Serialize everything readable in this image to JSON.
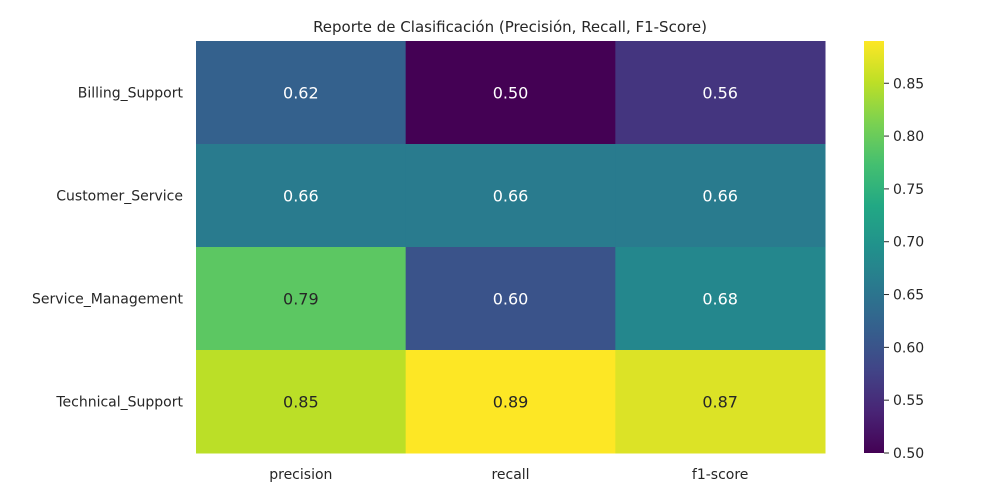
{
  "chart_data": {
    "type": "heatmap",
    "title": "Reporte de Clasificación (Precisión, Recall, F1-Score)",
    "xlabel": "",
    "ylabel": "",
    "columns": [
      "precision",
      "recall",
      "f1-score"
    ],
    "rows": [
      "Billing_Support",
      "Customer_Service",
      "Service_Management",
      "Technical_Support"
    ],
    "values": [
      [
        0.62,
        0.5,
        0.56
      ],
      [
        0.66,
        0.66,
        0.66
      ],
      [
        0.79,
        0.6,
        0.68
      ],
      [
        0.85,
        0.89,
        0.87
      ]
    ],
    "colormap": "viridis",
    "vmin": 0.5,
    "vmax": 0.89,
    "colorbar_ticks": [
      "0.50",
      "0.55",
      "0.60",
      "0.65",
      "0.70",
      "0.75",
      "0.80",
      "0.85"
    ]
  }
}
